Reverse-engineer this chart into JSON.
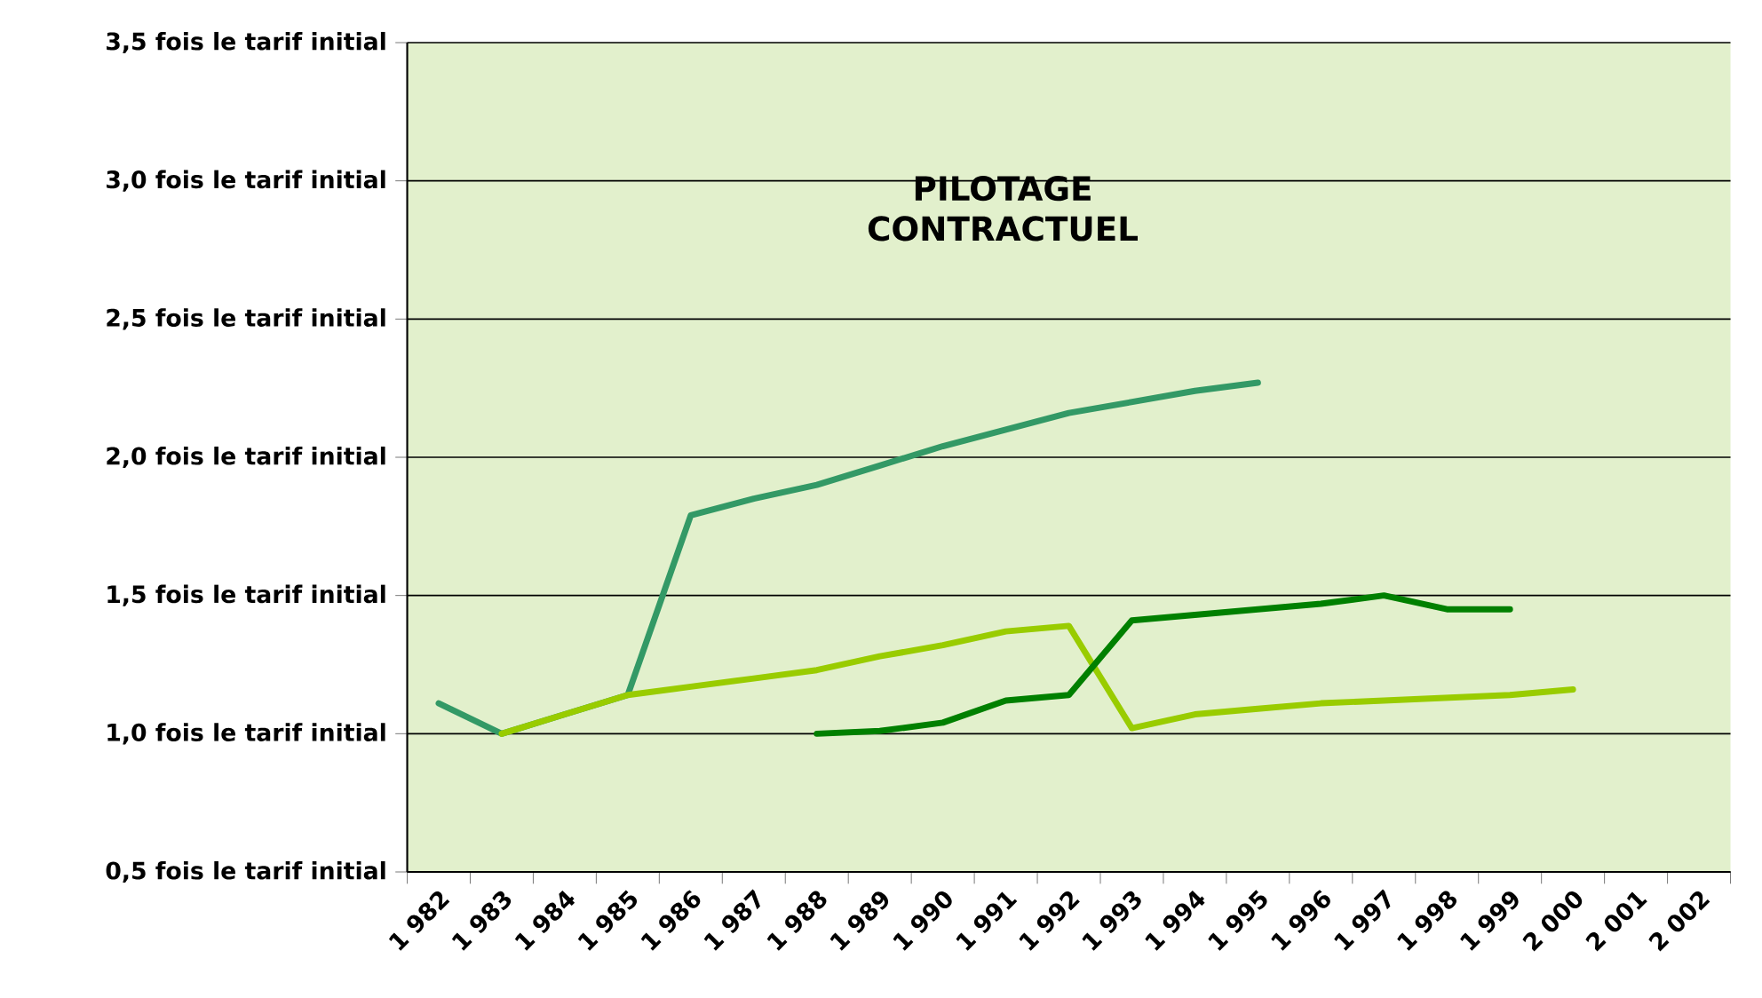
{
  "chart_data": {
    "type": "line",
    "categories": [
      "1 982",
      "1 983",
      "1 984",
      "1 985",
      "1 986",
      "1 987",
      "1 988",
      "1 989",
      "1 990",
      "1 991",
      "1 992",
      "1 993",
      "1 994",
      "1 995",
      "1 996",
      "1 997",
      "1 998",
      "1 999",
      "2 000",
      "2 001",
      "2 002"
    ],
    "series": [
      {
        "color": "#339966",
        "values": [
          1.11,
          1.0,
          1.07,
          1.14,
          1.79,
          1.85,
          1.9,
          1.97,
          2.04,
          2.1,
          2.16,
          2.2,
          2.24,
          2.27,
          null,
          null,
          null,
          null,
          null,
          null,
          null
        ]
      },
      {
        "color": "#99cc00",
        "values": [
          null,
          1.0,
          1.07,
          1.14,
          1.17,
          1.2,
          1.23,
          1.28,
          1.32,
          1.37,
          1.39,
          1.02,
          1.07,
          1.09,
          1.11,
          1.12,
          1.13,
          1.14,
          1.16,
          null,
          null
        ]
      },
      {
        "color": "#008000",
        "values": [
          null,
          null,
          null,
          null,
          null,
          null,
          1.0,
          1.01,
          1.04,
          1.12,
          1.14,
          1.41,
          1.43,
          1.45,
          1.47,
          1.5,
          1.45,
          1.45,
          null,
          null,
          null
        ]
      }
    ],
    "ylim": [
      0.5,
      3.5
    ],
    "yticks": [
      {
        "value": 0.5,
        "label": "0,5 fois le tarif initial"
      },
      {
        "value": 1.0,
        "label": "1,0 fois le tarif initial"
      },
      {
        "value": 1.5,
        "label": "1,5 fois le tarif initial"
      },
      {
        "value": 2.0,
        "label": "2,0 fois le tarif initial"
      },
      {
        "value": 2.5,
        "label": "2,5 fois le tarif initial"
      },
      {
        "value": 3.0,
        "label": "3,0 fois le tarif initial"
      },
      {
        "value": 3.5,
        "label": "3,5 fois le tarif initial"
      }
    ],
    "grid": "y",
    "marker": "none",
    "line_style": "solid",
    "annotations": [
      "PILOTAGE CONTRACTUEL"
    ]
  }
}
